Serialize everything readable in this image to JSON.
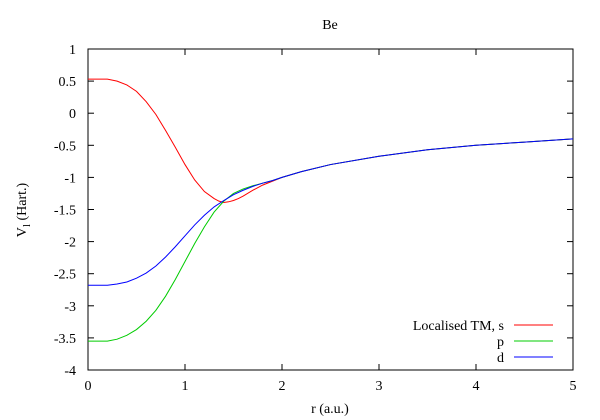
{
  "chart_data": {
    "type": "line",
    "title": "Be",
    "xlabel": "r (a.u.)",
    "ylabel": "V",
    "ylabel_subscript": "l",
    "ylabel_suffix": " (Hart.)",
    "xlim": [
      0,
      5
    ],
    "ylim": [
      -4,
      1
    ],
    "x_ticks": [
      0,
      1,
      2,
      3,
      4,
      5
    ],
    "x_tick_labels": [
      "0",
      "1",
      "2",
      "3",
      "4",
      "5"
    ],
    "y_ticks": [
      1,
      0.5,
      0,
      -0.5,
      -1,
      -1.5,
      -2,
      -2.5,
      -3,
      -3.5,
      -4
    ],
    "y_tick_labels": [
      "1",
      "0.5",
      "0",
      "-0.5",
      "-1",
      "-1.5",
      "-2",
      "-2.5",
      "-3",
      "-3.5",
      "-4"
    ],
    "grid": false,
    "legend_position": "bottom-right",
    "series": [
      {
        "name": "Localised TM, s",
        "color": "#ff0000",
        "points": [
          [
            0.0,
            0.53
          ],
          [
            0.2,
            0.53
          ],
          [
            0.3,
            0.5
          ],
          [
            0.4,
            0.44
          ],
          [
            0.5,
            0.34
          ],
          [
            0.6,
            0.18
          ],
          [
            0.7,
            -0.02
          ],
          [
            0.8,
            -0.27
          ],
          [
            0.9,
            -0.53
          ],
          [
            1.0,
            -0.8
          ],
          [
            1.1,
            -1.04
          ],
          [
            1.2,
            -1.22
          ],
          [
            1.3,
            -1.33
          ],
          [
            1.35,
            -1.37
          ],
          [
            1.4,
            -1.39
          ],
          [
            1.45,
            -1.38
          ],
          [
            1.5,
            -1.36
          ],
          [
            1.55,
            -1.33
          ],
          [
            1.6,
            -1.29
          ],
          [
            1.7,
            -1.2
          ],
          [
            1.8,
            -1.12
          ],
          [
            1.9,
            -1.06
          ],
          [
            2.0,
            -1.0
          ],
          [
            2.2,
            -0.91
          ],
          [
            2.5,
            -0.8
          ],
          [
            3.0,
            -0.67
          ],
          [
            3.5,
            -0.57
          ],
          [
            4.0,
            -0.5
          ],
          [
            4.5,
            -0.45
          ],
          [
            5.0,
            -0.4
          ]
        ]
      },
      {
        "name": "p",
        "color": "#00cc00",
        "points": [
          [
            0.0,
            -3.55
          ],
          [
            0.2,
            -3.55
          ],
          [
            0.3,
            -3.52
          ],
          [
            0.4,
            -3.46
          ],
          [
            0.5,
            -3.37
          ],
          [
            0.6,
            -3.24
          ],
          [
            0.7,
            -3.07
          ],
          [
            0.8,
            -2.85
          ],
          [
            0.9,
            -2.59
          ],
          [
            1.0,
            -2.31
          ],
          [
            1.1,
            -2.03
          ],
          [
            1.2,
            -1.77
          ],
          [
            1.3,
            -1.54
          ],
          [
            1.4,
            -1.37
          ],
          [
            1.5,
            -1.25
          ],
          [
            1.6,
            -1.18
          ],
          [
            1.7,
            -1.13
          ],
          [
            1.8,
            -1.09
          ],
          [
            1.9,
            -1.05
          ],
          [
            2.0,
            -1.0
          ],
          [
            2.2,
            -0.91
          ],
          [
            2.5,
            -0.8
          ],
          [
            3.0,
            -0.67
          ],
          [
            3.5,
            -0.57
          ],
          [
            4.0,
            -0.5
          ],
          [
            4.5,
            -0.45
          ],
          [
            5.0,
            -0.4
          ]
        ]
      },
      {
        "name": "d",
        "color": "#0000ff",
        "points": [
          [
            0.0,
            -2.68
          ],
          [
            0.2,
            -2.68
          ],
          [
            0.3,
            -2.66
          ],
          [
            0.4,
            -2.63
          ],
          [
            0.5,
            -2.57
          ],
          [
            0.6,
            -2.49
          ],
          [
            0.7,
            -2.38
          ],
          [
            0.8,
            -2.24
          ],
          [
            0.9,
            -2.08
          ],
          [
            1.0,
            -1.91
          ],
          [
            1.1,
            -1.74
          ],
          [
            1.2,
            -1.59
          ],
          [
            1.3,
            -1.46
          ],
          [
            1.4,
            -1.36
          ],
          [
            1.5,
            -1.27
          ],
          [
            1.6,
            -1.2
          ],
          [
            1.7,
            -1.14
          ],
          [
            1.8,
            -1.09
          ],
          [
            1.9,
            -1.05
          ],
          [
            2.0,
            -1.0
          ],
          [
            2.2,
            -0.91
          ],
          [
            2.5,
            -0.8
          ],
          [
            3.0,
            -0.67
          ],
          [
            3.5,
            -0.57
          ],
          [
            4.0,
            -0.5
          ],
          [
            4.5,
            -0.45
          ],
          [
            5.0,
            -0.4
          ]
        ]
      }
    ]
  }
}
